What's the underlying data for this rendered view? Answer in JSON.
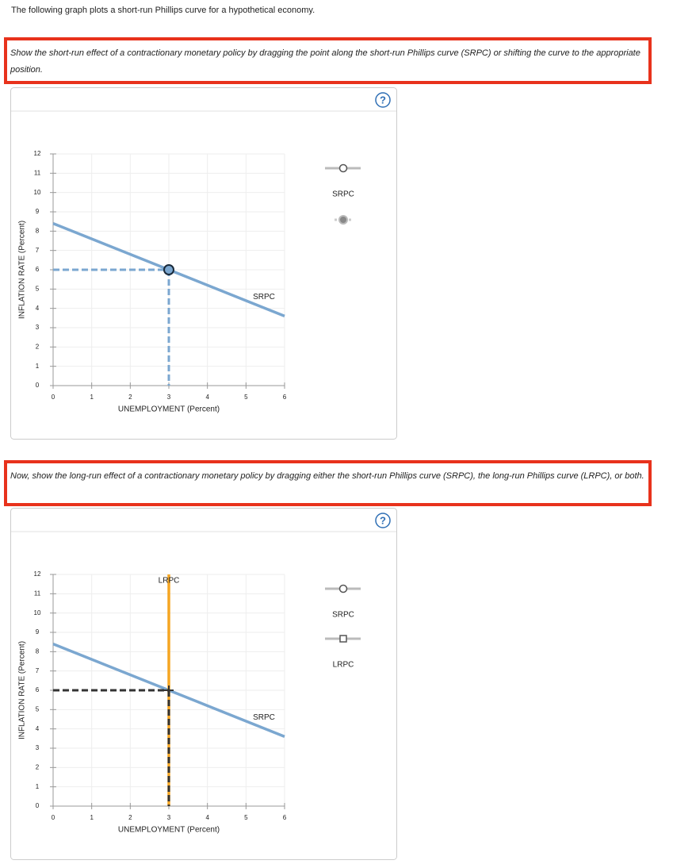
{
  "intro": "The following graph plots a short-run Phillips curve for a hypothetical economy.",
  "instructions": [
    "Show the short-run effect of a contractionary monetary policy by dragging the point along the short-run Phillips curve (SRPC) or shifting the curve to the appropriate position.",
    "Now, show the long-run effect of a contractionary monetary policy by dragging either the short-run Phillips curve (SRPC), the long-run Phillips curve (LRPC), or both."
  ],
  "help_icon": "?",
  "chart_data": [
    {
      "type": "line",
      "xlabel": "UNEMPLOYMENT (Percent)",
      "ylabel": "INFLATION RATE (Percent)",
      "xlim": [
        0,
        6
      ],
      "ylim": [
        0,
        12
      ],
      "xticks": [
        0,
        1,
        2,
        3,
        4,
        5,
        6
      ],
      "yticks": [
        0,
        1,
        2,
        3,
        4,
        5,
        6,
        7,
        8,
        9,
        10,
        11,
        12
      ],
      "grid": true,
      "series": [
        {
          "name": "SRPC",
          "color": "#7ba7d0",
          "x": [
            0,
            6
          ],
          "values": [
            8.4,
            3.6
          ]
        }
      ],
      "point": {
        "x": 3,
        "y": 6,
        "color": "#7ba7d0",
        "marker": "circle"
      }
    },
    {
      "type": "line",
      "xlabel": "UNEMPLOYMENT (Percent)",
      "ylabel": "INFLATION RATE (Percent)",
      "xlim": [
        0,
        6
      ],
      "ylim": [
        0,
        12
      ],
      "xticks": [
        0,
        1,
        2,
        3,
        4,
        5,
        6
      ],
      "yticks": [
        0,
        1,
        2,
        3,
        4,
        5,
        6,
        7,
        8,
        9,
        10,
        11,
        12
      ],
      "grid": true,
      "series": [
        {
          "name": "SRPC",
          "color": "#7ba7d0",
          "x": [
            0,
            6
          ],
          "values": [
            8.4,
            3.6
          ]
        },
        {
          "name": "LRPC",
          "color": "#f5a623",
          "x": [
            3,
            3
          ],
          "values": [
            0,
            12
          ]
        }
      ],
      "point": {
        "x": 3,
        "y": 6,
        "color": "#333333",
        "marker": "plus"
      }
    }
  ]
}
